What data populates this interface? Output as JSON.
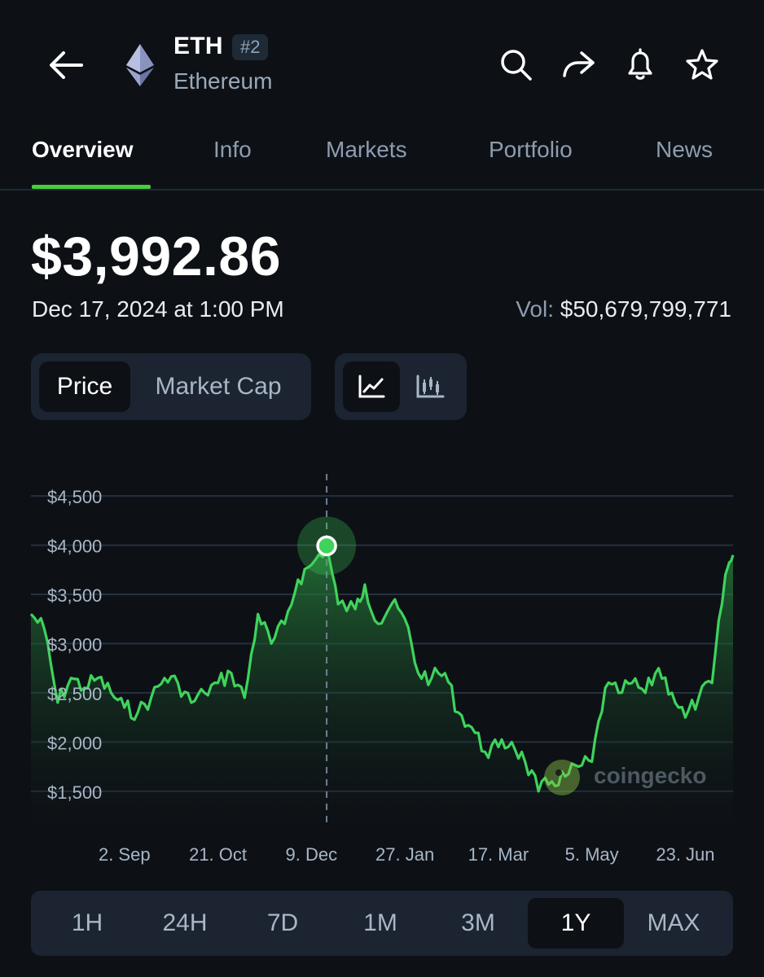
{
  "header": {
    "coin_symbol": "ETH",
    "rank": "#2",
    "coin_name": "Ethereum",
    "icons": [
      "back-arrow-icon",
      "ethereum-logo",
      "search-icon",
      "share-icon",
      "bell-icon",
      "star-icon"
    ]
  },
  "tabs": [
    {
      "label": "Overview",
      "active": true
    },
    {
      "label": "Info",
      "active": false
    },
    {
      "label": "Markets",
      "active": false
    },
    {
      "label": "Portfolio",
      "active": false
    },
    {
      "label": "News",
      "active": false
    }
  ],
  "summary": {
    "price": "$3,992.86",
    "datetime": "Dec 17, 2024 at 1:00 PM",
    "vol_label": "Vol:",
    "vol_value": "$50,679,799,771"
  },
  "metric_toggle": {
    "options": [
      "Price",
      "Market Cap"
    ],
    "selected": "Price"
  },
  "chart_style_toggle": {
    "options": [
      "line-chart-icon",
      "candlestick-icon"
    ],
    "selected": "line-chart-icon"
  },
  "watermark": "coingecko",
  "colors": {
    "accent_green": "#4bcc3b",
    "line_green": "#3fd35c",
    "background": "#0d1116",
    "panel": "#1b2430"
  },
  "time_ranges": {
    "options": [
      "1H",
      "24H",
      "7D",
      "1M",
      "3M",
      "1Y",
      "MAX"
    ],
    "selected": "1Y"
  },
  "chart_data": {
    "type": "area",
    "title": "",
    "xlabel": "",
    "ylabel": "",
    "y_ticks": [
      1500,
      2000,
      2500,
      3000,
      3500,
      4000,
      4500
    ],
    "y_tick_labels": [
      "$1,500",
      "$2,000",
      "$2,500",
      "$3,000",
      "$3,500",
      "$4,000",
      "$4,500"
    ],
    "ylim": [
      1350,
      4650
    ],
    "x_range": [
      "2024-07-15",
      "2025-07-18"
    ],
    "x_ticks": [
      "2024-09-02",
      "2024-10-21",
      "2024-12-09",
      "2025-01-27",
      "2025-03-17",
      "2025-05-05",
      "2025-06-23"
    ],
    "x_tick_labels": [
      "2. Sep",
      "21. Oct",
      "9. Dec",
      "27. Jan",
      "17. Mar",
      "5. May",
      "23. Jun"
    ],
    "grid": true,
    "selected_point": {
      "x": "2024-12-17",
      "y": 3992.86
    },
    "points": [
      [
        "2024-07-15",
        3300
      ],
      [
        "2024-07-22",
        3150
      ],
      [
        "2024-07-29",
        2400
      ],
      [
        "2024-08-05",
        2650
      ],
      [
        "2024-08-12",
        2550
      ],
      [
        "2024-08-19",
        2650
      ],
      [
        "2024-08-26",
        2500
      ],
      [
        "2024-09-02",
        2350
      ],
      [
        "2024-09-09",
        2300
      ],
      [
        "2024-09-16",
        2450
      ],
      [
        "2024-09-23",
        2650
      ],
      [
        "2024-09-30",
        2600
      ],
      [
        "2024-10-07",
        2400
      ],
      [
        "2024-10-14",
        2500
      ],
      [
        "2024-10-21",
        2600
      ],
      [
        "2024-10-28",
        2700
      ],
      [
        "2024-11-04",
        2450
      ],
      [
        "2024-11-11",
        3300
      ],
      [
        "2024-11-18",
        3000
      ],
      [
        "2024-11-25",
        3200
      ],
      [
        "2024-12-02",
        3650
      ],
      [
        "2024-12-09",
        3800
      ],
      [
        "2024-12-17",
        3990
      ],
      [
        "2024-12-23",
        3400
      ],
      [
        "2025-01-01",
        3350
      ],
      [
        "2025-01-06",
        3600
      ],
      [
        "2025-01-13",
        3200
      ],
      [
        "2025-01-20",
        3400
      ],
      [
        "2025-01-27",
        3250
      ],
      [
        "2025-02-03",
        2700
      ],
      [
        "2025-02-10",
        2650
      ],
      [
        "2025-02-17",
        2700
      ],
      [
        "2025-02-24",
        2300
      ],
      [
        "2025-03-03",
        2150
      ],
      [
        "2025-03-10",
        1900
      ],
      [
        "2025-03-17",
        1950
      ],
      [
        "2025-03-24",
        2000
      ],
      [
        "2025-03-31",
        1800
      ],
      [
        "2025-04-07",
        1500
      ],
      [
        "2025-04-14",
        1600
      ],
      [
        "2025-04-21",
        1650
      ],
      [
        "2025-04-28",
        1750
      ],
      [
        "2025-05-05",
        1800
      ],
      [
        "2025-05-12",
        2550
      ],
      [
        "2025-05-19",
        2500
      ],
      [
        "2025-05-26",
        2600
      ],
      [
        "2025-06-02",
        2500
      ],
      [
        "2025-06-09",
        2750
      ],
      [
        "2025-06-16",
        2500
      ],
      [
        "2025-06-23",
        2250
      ],
      [
        "2025-06-30",
        2450
      ],
      [
        "2025-07-07",
        2600
      ],
      [
        "2025-07-14",
        3700
      ],
      [
        "2025-07-18",
        3900
      ]
    ]
  }
}
